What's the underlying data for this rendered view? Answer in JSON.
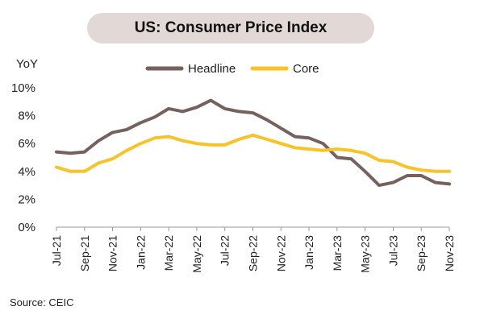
{
  "header": {
    "title": "US: Consumer Price Index"
  },
  "footer": {
    "source": "Source: CEIC"
  },
  "chart_data": {
    "type": "line",
    "title": "US: Consumer Price Index",
    "ylabel": "YoY",
    "xlabel": "",
    "ylim": [
      0,
      10
    ],
    "yticks": [
      0,
      2,
      4,
      6,
      8,
      10
    ],
    "ytick_labels": [
      "0%",
      "2%",
      "4%",
      "6%",
      "8%",
      "10%"
    ],
    "grid": false,
    "legend_position": "top-center",
    "x": [
      "Jul-21",
      "Aug-21",
      "Sep-21",
      "Oct-21",
      "Nov-21",
      "Dec-21",
      "Jan-22",
      "Feb-22",
      "Mar-22",
      "Apr-22",
      "May-22",
      "Jun-22",
      "Jul-22",
      "Aug-22",
      "Sep-22",
      "Oct-22",
      "Nov-22",
      "Dec-22",
      "Jan-23",
      "Feb-23",
      "Mar-23",
      "Apr-23",
      "May-23",
      "Jun-23",
      "Jul-23",
      "Aug-23",
      "Sep-23",
      "Oct-23",
      "Nov-23"
    ],
    "xtick_labels": [
      "Jul-21",
      "Sep-21",
      "Nov-21",
      "Jan-22",
      "Mar-22",
      "May-22",
      "Jul-22",
      "Sep-22",
      "Nov-22",
      "Jan-23",
      "Mar-23",
      "May-23",
      "Jul-23",
      "Sep-23",
      "Nov-23"
    ],
    "series": [
      {
        "name": "Headline",
        "color": "#76625d",
        "values": [
          5.4,
          5.3,
          5.4,
          6.2,
          6.8,
          7.0,
          7.5,
          7.9,
          8.5,
          8.3,
          8.6,
          9.1,
          8.5,
          8.3,
          8.2,
          7.7,
          7.1,
          6.5,
          6.4,
          6.0,
          5.0,
          4.9,
          4.0,
          3.0,
          3.2,
          3.7,
          3.7,
          3.2,
          3.1
        ]
      },
      {
        "name": "Core",
        "color": "#f7c32b",
        "values": [
          4.3,
          4.0,
          4.0,
          4.6,
          4.9,
          5.5,
          6.0,
          6.4,
          6.5,
          6.2,
          6.0,
          5.9,
          5.9,
          6.3,
          6.6,
          6.3,
          6.0,
          5.7,
          5.6,
          5.5,
          5.6,
          5.5,
          5.3,
          4.8,
          4.7,
          4.3,
          4.1,
          4.0,
          4.0
        ]
      }
    ]
  }
}
